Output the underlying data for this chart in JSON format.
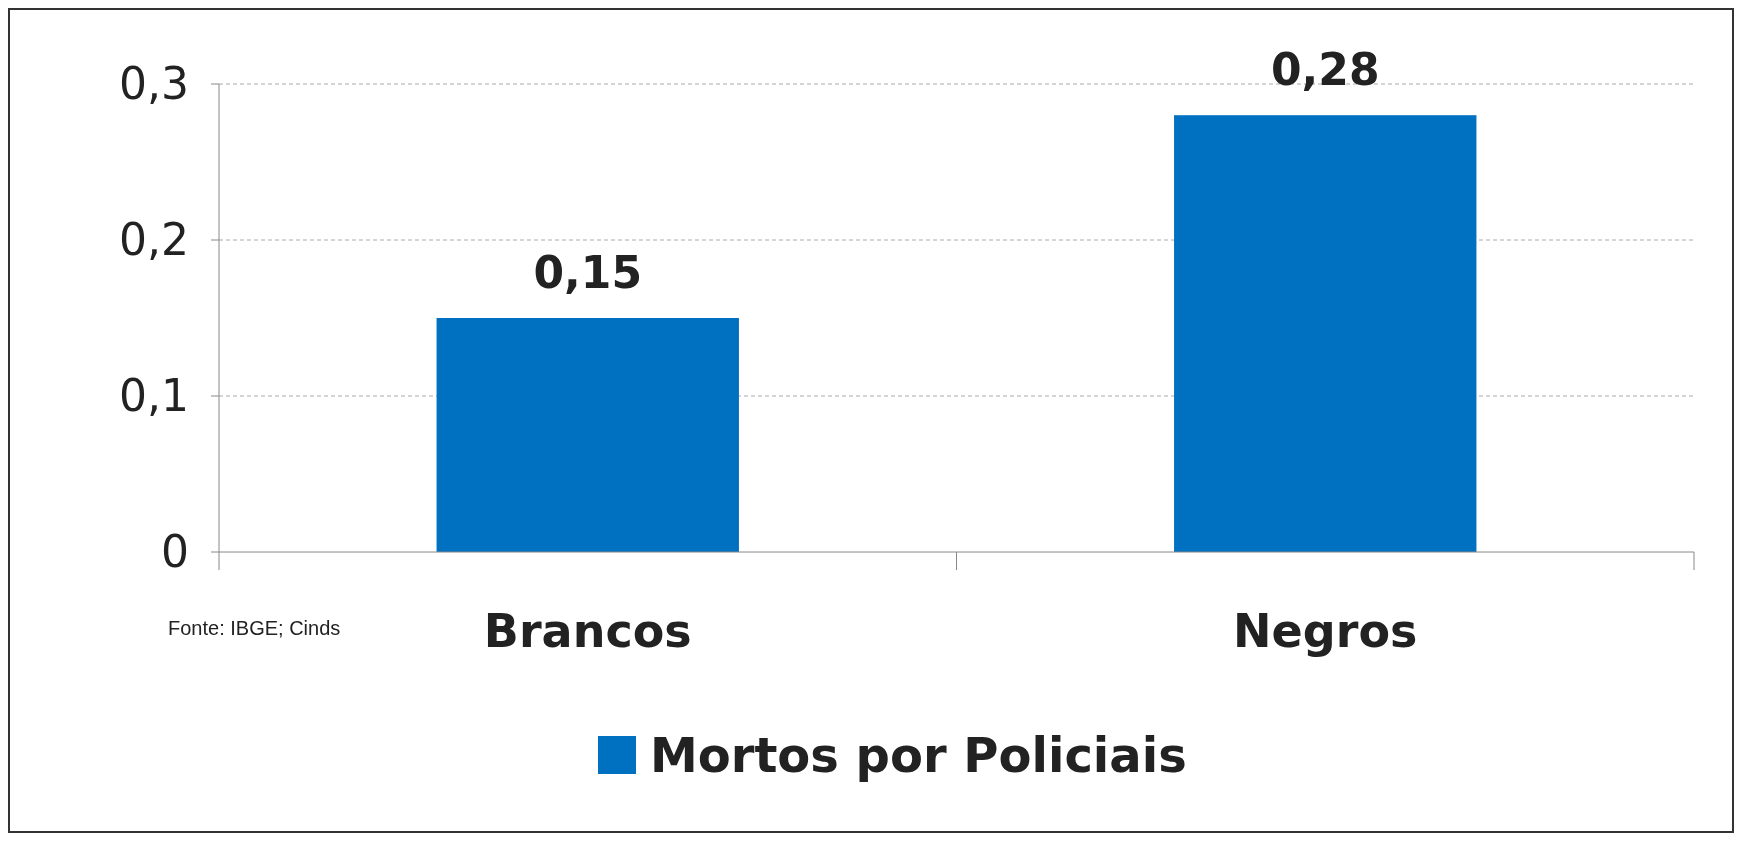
{
  "chart_data": {
    "type": "bar",
    "categories": [
      "Brancos",
      "Negros"
    ],
    "series": [
      {
        "name": "Mortos por Policiais",
        "color": "#0070c0",
        "values": [
          0.15,
          0.28
        ]
      }
    ],
    "value_labels": [
      "0,15",
      "0,28"
    ],
    "ylim": [
      0,
      0.3
    ],
    "yticks": [
      {
        "value": 0,
        "label": "0"
      },
      {
        "value": 0.1,
        "label": "0,1"
      },
      {
        "value": 0.2,
        "label": "0,2"
      },
      {
        "value": 0.3,
        "label": "0,3"
      }
    ],
    "grid": "y",
    "legend": "bottom",
    "annotations": [
      "Fonte: IBGE; Cinds"
    ]
  }
}
